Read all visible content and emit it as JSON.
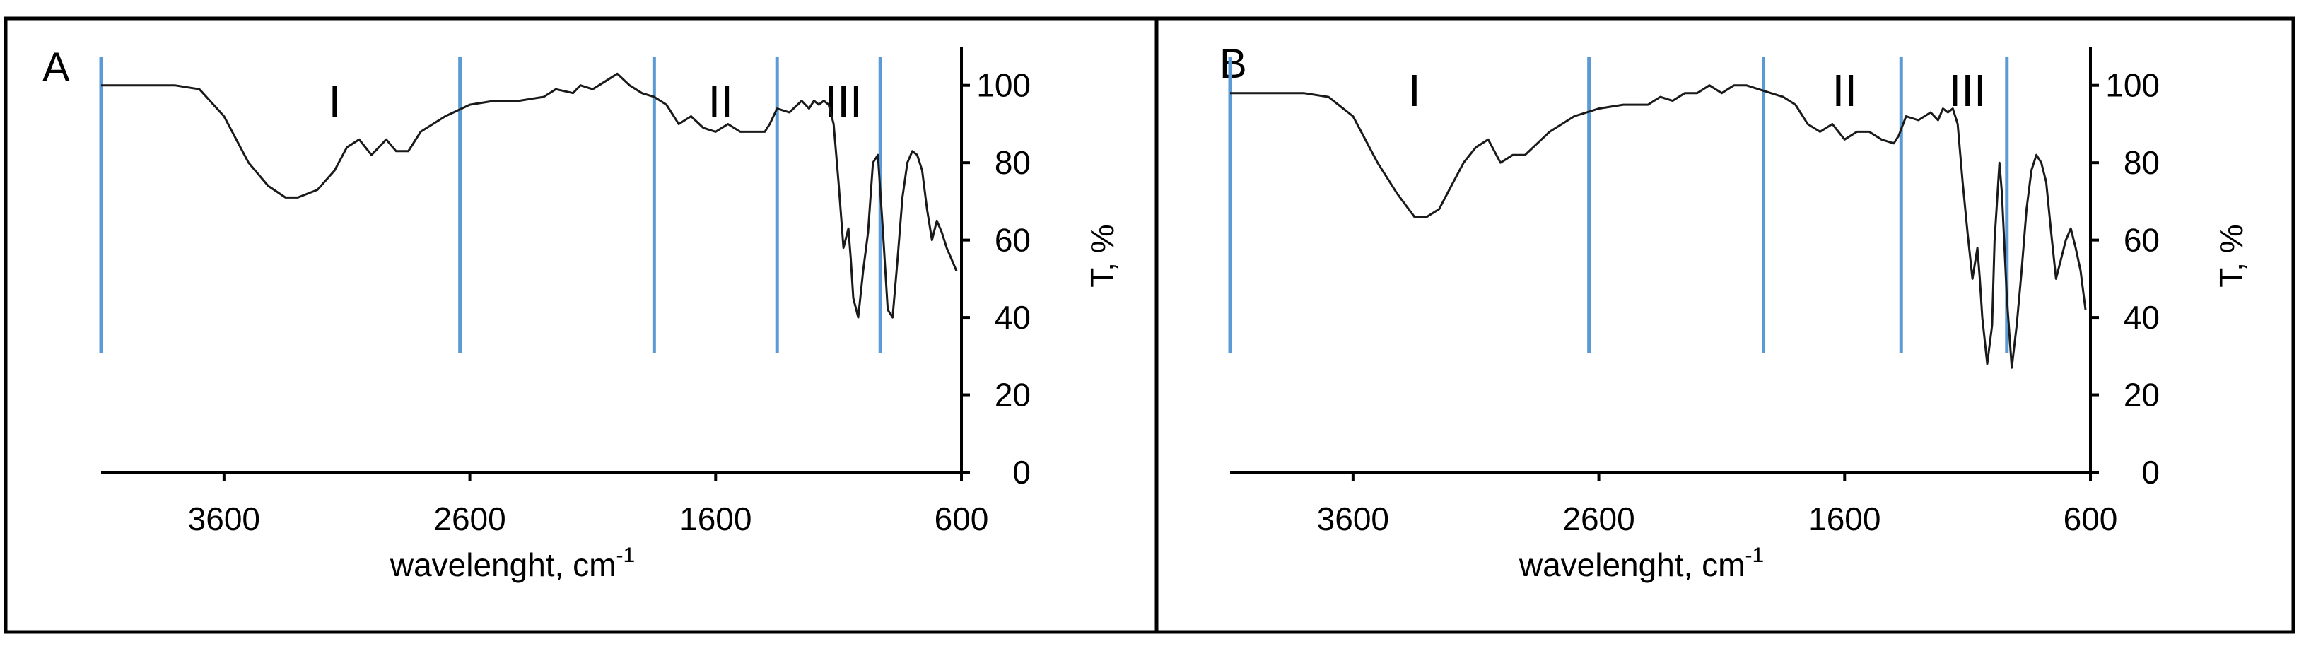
{
  "chart_data": [
    {
      "type": "line",
      "panel_label": "A",
      "xlabel": "wavelenght, cm",
      "xlabel_superscript": "-1",
      "ylabel": "T, %",
      "xlim": [
        4100,
        600
      ],
      "ylim": [
        0,
        110
      ],
      "x_reversed": true,
      "y_axis_side": "right",
      "x_ticks": [
        3600,
        2600,
        1600,
        600
      ],
      "y_ticks": [
        0,
        20,
        40,
        60,
        80,
        100
      ],
      "grid": false,
      "region_dividers": [
        4100,
        2640,
        1850,
        1350,
        930
      ],
      "region_labels": [
        {
          "text": "I",
          "x": 3150
        },
        {
          "text": "II",
          "x": 1580
        },
        {
          "text": "III",
          "x": 1080
        }
      ],
      "series": [
        {
          "x": [
            4100,
            3800,
            3700,
            3600,
            3500,
            3420,
            3350,
            3300,
            3220,
            3150,
            3100,
            3050,
            3000,
            2970,
            2940,
            2900,
            2850,
            2800,
            2700,
            2600,
            2500,
            2400,
            2300,
            2250,
            2180,
            2150,
            2100,
            2050,
            2000,
            1950,
            1900,
            1850,
            1800,
            1750,
            1700,
            1650,
            1600,
            1550,
            1500,
            1450,
            1400,
            1380,
            1350,
            1300,
            1250,
            1220,
            1200,
            1180,
            1160,
            1140,
            1120,
            1100,
            1080,
            1060,
            1050,
            1040,
            1020,
            1000,
            980,
            960,
            940,
            920,
            900,
            880,
            860,
            840,
            820,
            800,
            780,
            760,
            740,
            720,
            700,
            680,
            660,
            640,
            620
          ],
          "values": [
            100,
            100,
            99,
            92,
            80,
            74,
            71,
            71,
            73,
            78,
            84,
            86,
            82,
            84,
            86,
            83,
            83,
            88,
            92,
            95,
            96,
            96,
            97,
            99,
            98,
            100,
            99,
            101,
            103,
            100,
            98,
            97,
            95,
            90,
            92,
            89,
            88,
            90,
            88,
            88,
            88,
            90,
            94,
            93,
            96,
            94,
            96,
            95,
            96,
            95,
            90,
            75,
            58,
            63,
            55,
            45,
            40,
            52,
            62,
            80,
            82,
            63,
            42,
            40,
            55,
            71,
            80,
            83,
            82,
            78,
            68,
            60,
            65,
            62,
            58,
            55,
            52
          ]
        }
      ]
    },
    {
      "type": "line",
      "panel_label": "B",
      "xlabel": "wavelenght, cm",
      "xlabel_superscript": "-1",
      "ylabel": "T, %",
      "xlim": [
        4100,
        600
      ],
      "ylim": [
        0,
        110
      ],
      "x_reversed": true,
      "y_axis_side": "right",
      "x_ticks": [
        3600,
        2600,
        1600,
        600
      ],
      "y_ticks": [
        0,
        20,
        40,
        60,
        80,
        100
      ],
      "grid": false,
      "region_dividers": [
        4100,
        2640,
        1930,
        1370,
        940
      ],
      "region_labels": [
        {
          "text": "I",
          "x": 3350
        },
        {
          "text": "II",
          "x": 1600
        },
        {
          "text": "III",
          "x": 1100
        }
      ],
      "series": [
        {
          "x": [
            4100,
            3900,
            3800,
            3700,
            3600,
            3500,
            3420,
            3350,
            3300,
            3250,
            3200,
            3150,
            3100,
            3050,
            3000,
            2950,
            2900,
            2850,
            2800,
            2700,
            2600,
            2500,
            2400,
            2350,
            2300,
            2250,
            2200,
            2150,
            2100,
            2050,
            2000,
            1950,
            1900,
            1850,
            1800,
            1750,
            1700,
            1650,
            1600,
            1550,
            1500,
            1450,
            1400,
            1380,
            1350,
            1300,
            1250,
            1220,
            1200,
            1180,
            1160,
            1140,
            1120,
            1100,
            1080,
            1060,
            1050,
            1040,
            1020,
            1000,
            990,
            970,
            960,
            940,
            920,
            900,
            880,
            860,
            840,
            820,
            800,
            780,
            760,
            740,
            720,
            700,
            680,
            660,
            640,
            620
          ],
          "values": [
            98,
            98,
            98,
            97,
            92,
            80,
            72,
            66,
            66,
            68,
            74,
            80,
            84,
            86,
            80,
            82,
            82,
            85,
            88,
            92,
            94,
            95,
            95,
            97,
            96,
            98,
            98,
            100,
            98,
            100,
            100,
            99,
            98,
            97,
            95,
            90,
            88,
            90,
            86,
            88,
            88,
            86,
            85,
            87,
            92,
            91,
            93,
            91,
            94,
            93,
            94,
            90,
            75,
            62,
            50,
            58,
            50,
            40,
            28,
            38,
            60,
            80,
            72,
            45,
            27,
            38,
            52,
            68,
            78,
            82,
            80,
            75,
            62,
            50,
            55,
            60,
            63,
            58,
            52,
            42
          ]
        }
      ]
    }
  ]
}
